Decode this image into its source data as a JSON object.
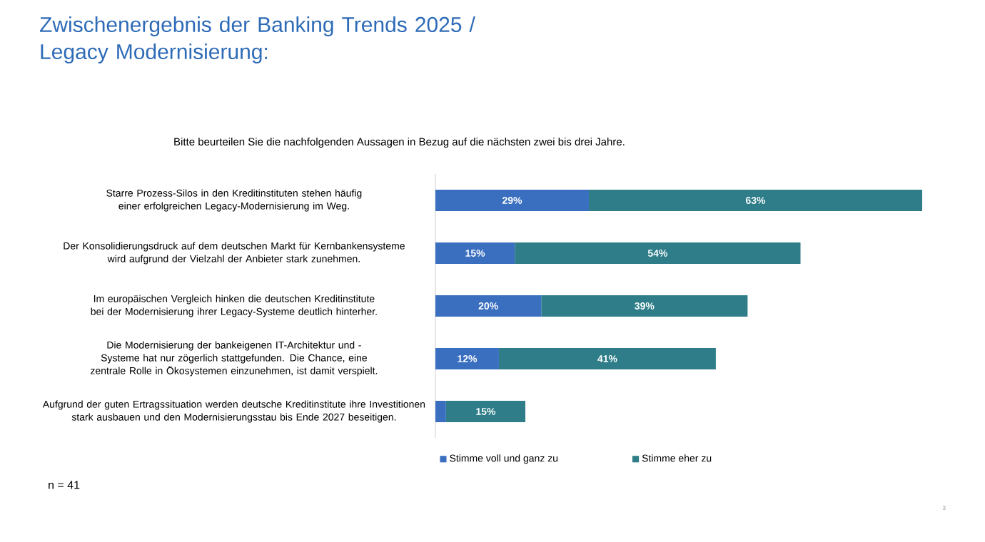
{
  "chart_data": {
    "type": "bar",
    "orientation": "horizontal",
    "stacked": true,
    "title": "Zwischenergebnis der Banking Trends 2025 / Legacy Modernisierung:",
    "subtitle": "Bitte beurteilen Sie die nachfolgenden Aussagen in Bezug auf die nächsten zwei bis drei Jahre.",
    "categories": [
      "Starre Prozess-Silos in den Kreditinstituten stehen häufig einer erfolgreichen Legacy-Modernisierung im Weg.",
      "Der Konsolidierungsdruck auf dem deutschen Markt für Kernbankensysteme wird aufgrund der Vielzahl der Anbieter stark zunehmen.",
      "Im europäischen Vergleich hinken die deutschen Kreditinstitute bei der Modernisierung ihrer Legacy-Systeme deutlich hinterher.",
      "Die Modernisierung der bankeigenen IT-Architektur und -Systeme hat nur zögerlich stattgefunden. Die Chance, eine zentrale Rolle in Ökosystemen einzunehmen, ist damit verspielt.",
      "Aufgrund der guten Ertragssituation werden deutsche Kreditinstitute ihre Investitionen stark ausbauen und den Modernisierungsstau bis Ende 2027 beseitigen."
    ],
    "series": [
      {
        "name": "Stimme voll und ganz zu",
        "color": "#3a6fc0",
        "values": [
          29,
          15,
          20,
          12,
          2
        ],
        "value_labels": [
          "29%",
          "15%",
          "20%",
          "12%",
          null
        ]
      },
      {
        "name": "Stimme eher zu",
        "color": "#2e7d89",
        "values": [
          63,
          54,
          39,
          41,
          15
        ],
        "value_labels": [
          "63%",
          "54%",
          "39%",
          "41%",
          "15%"
        ]
      }
    ],
    "legend": "bottom",
    "annotations": [
      "n = 41",
      "3"
    ]
  }
}
